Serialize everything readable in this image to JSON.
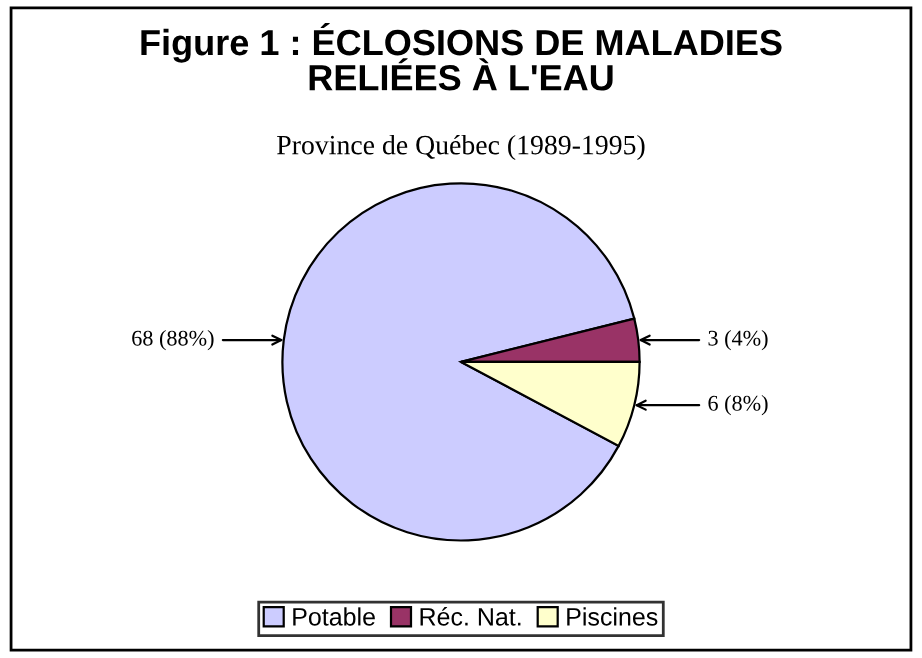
{
  "chart_data": {
    "type": "pie",
    "title": "Figure 1 : ÉCLOSIONS DE MALADIES\nRELIÉES À L'EAU",
    "subtitle": "Province de Québec (1989-1995)",
    "categories": [
      "Potable",
      "Réc. Nat.",
      "Piscines"
    ],
    "values": [
      68,
      3,
      6
    ],
    "colors": [
      "#ccccff",
      "#993366",
      "#ffffcc"
    ],
    "value_labels": [
      "68 (88%)",
      "3 (4%)",
      "6 (8%)"
    ],
    "legend": "bottom"
  }
}
